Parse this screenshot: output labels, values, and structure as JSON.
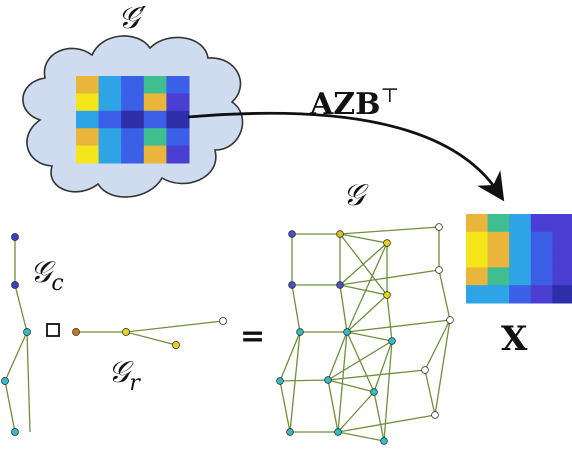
{
  "labels": {
    "g_prime": "𝒢′",
    "mapping": "AZB",
    "mapping_sup": "⊤",
    "g_product": "𝒢",
    "g_col": "𝒢",
    "g_col_sub": "c",
    "g_row": "𝒢",
    "g_row_sub": "r",
    "box_op": "□",
    "equals": "=",
    "x_matrix": "X"
  },
  "palette": {
    "cloud_fill": "#cfdcef",
    "cloud_stroke": "#333333",
    "edge": "#6f8f3c",
    "yellow": "#f5e51b",
    "orange": "#e9b53a",
    "green": "#3fbf8f",
    "cyan": "#2ea3e6",
    "blue": "#3b5fe6",
    "indigo": "#4a3fd2",
    "navy": "#2c2fa8"
  },
  "heatmap_prime": [
    [
      "orange",
      "cyan",
      "blue",
      "green",
      "blue"
    ],
    [
      "yellow",
      "cyan",
      "blue",
      "orange",
      "indigo"
    ],
    [
      "cyan",
      "blue",
      "navy",
      "blue",
      "navy"
    ],
    [
      "orange",
      "cyan",
      "blue",
      "green",
      "blue"
    ],
    [
      "yellow",
      "cyan",
      "blue",
      "orange",
      "indigo"
    ]
  ],
  "heatmap_x": [
    [
      "orange",
      "green",
      "cyan",
      "indigo",
      "indigo"
    ],
    [
      "yellow",
      "orange",
      "cyan",
      "blue",
      "indigo"
    ],
    [
      "yellow",
      "orange",
      "cyan",
      "blue",
      "indigo"
    ],
    [
      "orange",
      "green",
      "cyan",
      "blue",
      "indigo"
    ],
    [
      "cyan",
      "cyan",
      "blue",
      "indigo",
      "navy"
    ]
  ]
}
